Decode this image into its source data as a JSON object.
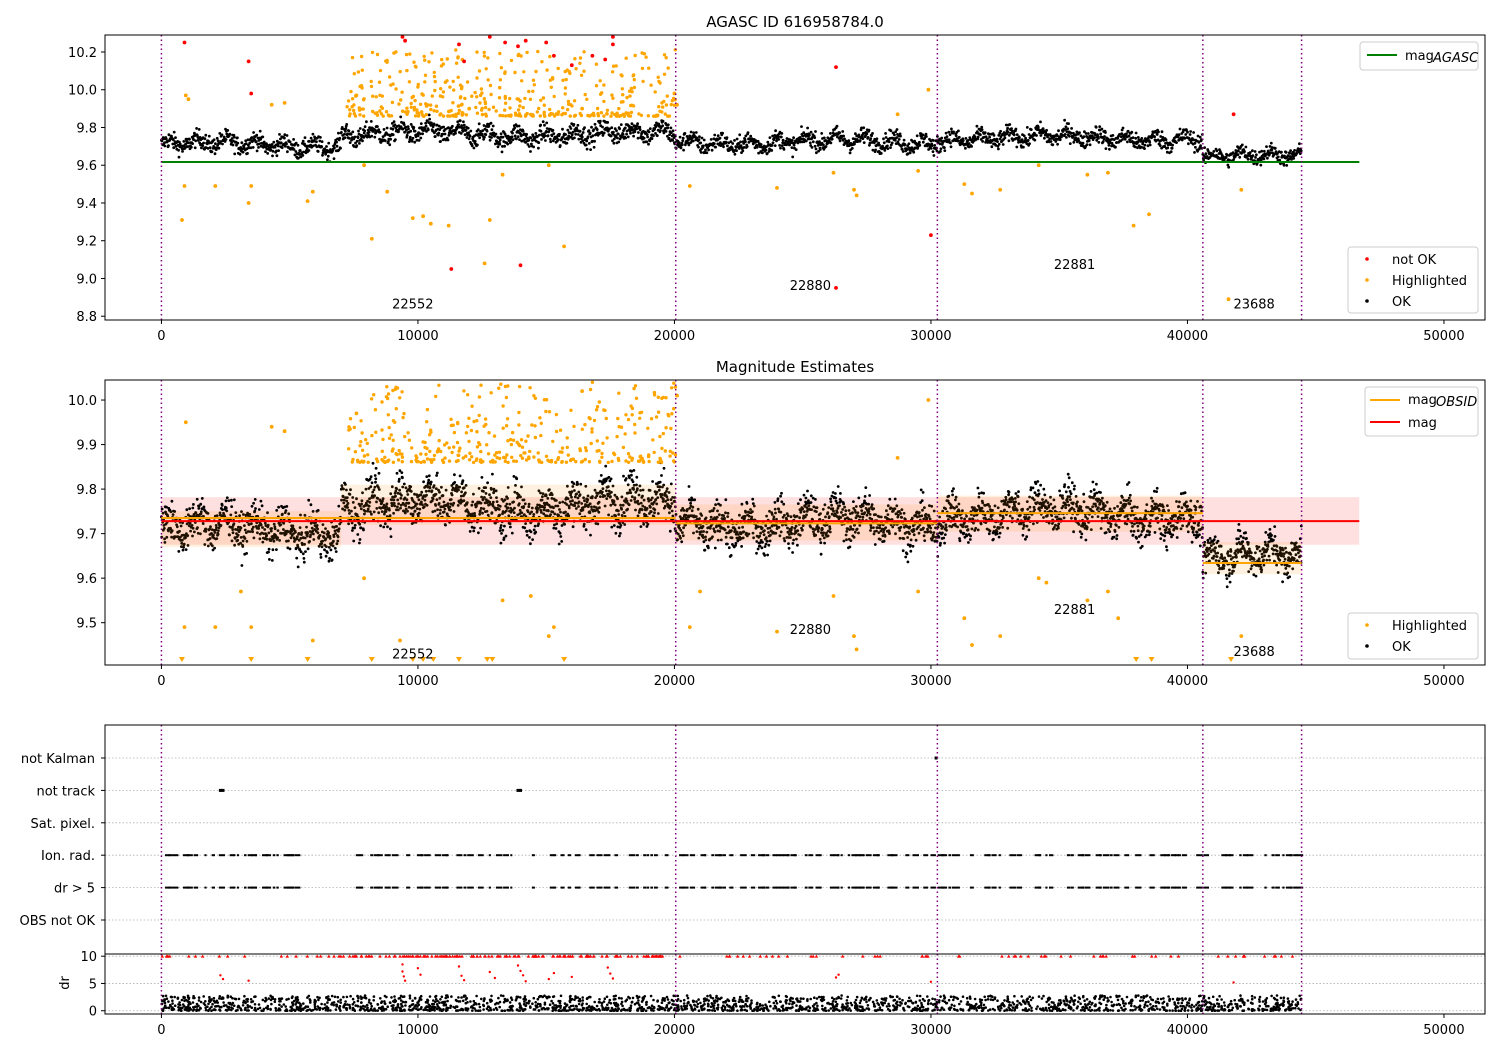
{
  "chart_data": [
    {
      "type": "scatter",
      "title": "AGASC ID 616958784.0",
      "xlim": [
        -2200,
        51600
      ],
      "ylim": [
        8.78,
        10.29
      ],
      "xticks": [
        0,
        10000,
        20000,
        30000,
        40000,
        50000
      ],
      "yticks": [
        8.8,
        9.0,
        9.2,
        9.4,
        9.6,
        9.8,
        10.0,
        10.2
      ],
      "line_legend": {
        "position": "top-right",
        "entries": [
          {
            "name": "mag",
            "sub": "AGASC",
            "color": "#008000"
          }
        ]
      },
      "scatter_legend": {
        "position": "bottom-right",
        "entries": [
          {
            "name": "not OK",
            "color": "#ff0000"
          },
          {
            "name": "Highlighted",
            "color": "#ffa500"
          },
          {
            "name": "OK",
            "color": "#000000"
          }
        ]
      },
      "mag_agasc": 9.617,
      "mag_agasc_x": [
        0,
        46700
      ],
      "obs_boundaries": [
        0,
        20050,
        30250,
        40600,
        44450
      ],
      "observations": [
        {
          "obsid": "22552",
          "x": 9800,
          "y": 8.84
        },
        {
          "obsid": "22880",
          "x": 25300,
          "y": 8.94
        },
        {
          "obsid": "22881",
          "x": 35600,
          "y": 9.05
        },
        {
          "obsid": "23688",
          "x": 42600,
          "y": 8.84
        }
      ],
      "ok_segments": [
        {
          "x0": 0,
          "x1": 7000,
          "mean": 9.71,
          "spread": 0.045
        },
        {
          "x0": 7000,
          "x1": 20050,
          "mean": 9.765,
          "spread": 0.05
        },
        {
          "x0": 20050,
          "x1": 30250,
          "mean": 9.725,
          "spread": 0.045
        },
        {
          "x0": 30250,
          "x1": 40600,
          "mean": 9.745,
          "spread": 0.045
        },
        {
          "x0": 40600,
          "x1": 44450,
          "mean": 9.645,
          "spread": 0.04
        }
      ],
      "highlighted_points": [
        [
          800,
          9.31
        ],
        [
          900,
          9.49
        ],
        [
          950,
          9.97
        ],
        [
          1050,
          9.95
        ],
        [
          2100,
          9.49
        ],
        [
          3400,
          9.4
        ],
        [
          3500,
          9.49
        ],
        [
          4300,
          9.92
        ],
        [
          4800,
          9.93
        ],
        [
          5700,
          9.41
        ],
        [
          5900,
          9.46
        ],
        [
          7600,
          9.97
        ],
        [
          7900,
          9.6
        ],
        [
          8200,
          9.21
        ],
        [
          8800,
          9.46
        ],
        [
          9800,
          9.32
        ],
        [
          10200,
          9.33
        ],
        [
          10500,
          9.29
        ],
        [
          11200,
          9.28
        ],
        [
          12000,
          9.9
        ],
        [
          12600,
          9.08
        ],
        [
          12800,
          9.31
        ],
        [
          13300,
          9.55
        ],
        [
          15100,
          9.6
        ],
        [
          15700,
          9.17
        ],
        [
          16400,
          9.9
        ],
        [
          20000,
          9.98
        ],
        [
          20100,
          9.92
        ],
        [
          20600,
          9.49
        ],
        [
          24000,
          9.48
        ],
        [
          26200,
          9.56
        ],
        [
          27000,
          9.47
        ],
        [
          27100,
          9.44
        ],
        [
          28700,
          9.87
        ],
        [
          29500,
          9.57
        ],
        [
          29900,
          10.0
        ],
        [
          31300,
          9.5
        ],
        [
          31600,
          9.45
        ],
        [
          32700,
          9.47
        ],
        [
          34200,
          9.6
        ],
        [
          36100,
          9.55
        ],
        [
          36900,
          9.56
        ],
        [
          37900,
          9.28
        ],
        [
          38500,
          9.34
        ],
        [
          41600,
          8.89
        ],
        [
          42100,
          9.47
        ]
      ],
      "highlighted_clusters": [
        {
          "x0": 7200,
          "x1": 20050,
          "ymin": 9.86,
          "ymax": 10.22,
          "count": 420
        }
      ],
      "not_ok_points": [
        [
          900,
          10.25
        ],
        [
          3400,
          10.15
        ],
        [
          3500,
          9.98
        ],
        [
          9400,
          10.28
        ],
        [
          9500,
          10.26
        ],
        [
          11300,
          9.05
        ],
        [
          11600,
          10.24
        ],
        [
          11800,
          10.15
        ],
        [
          12800,
          10.28
        ],
        [
          13400,
          10.25
        ],
        [
          13900,
          10.23
        ],
        [
          14000,
          9.07
        ],
        [
          14200,
          10.26
        ],
        [
          15000,
          10.25
        ],
        [
          15300,
          10.18
        ],
        [
          16000,
          10.13
        ],
        [
          16800,
          10.18
        ],
        [
          17300,
          10.16
        ],
        [
          17600,
          10.28
        ],
        [
          17600,
          10.24
        ],
        [
          26300,
          10.12
        ],
        [
          26300,
          8.95
        ],
        [
          30000,
          9.23
        ],
        [
          41800,
          9.87
        ]
      ]
    },
    {
      "type": "scatter",
      "title": "Magnitude Estimates",
      "xlim": [
        -2200,
        51600
      ],
      "ylim": [
        9.405,
        10.045
      ],
      "xticks": [
        0,
        10000,
        20000,
        30000,
        40000,
        50000
      ],
      "yticks": [
        9.5,
        9.6,
        9.7,
        9.8,
        9.9,
        10.0
      ],
      "line_legend": {
        "position": "top-right",
        "entries": [
          {
            "name": "mag",
            "sub": "OBSID",
            "color": "#ffa500"
          },
          {
            "name": "mag",
            "sub": "",
            "color": "#ff0000"
          }
        ]
      },
      "scatter_legend": {
        "position": "bottom-right",
        "entries": [
          {
            "name": "Highlighted",
            "color": "#ffa500"
          },
          {
            "name": "OK",
            "color": "#000000"
          }
        ]
      },
      "mag": 9.728,
      "mag_band": [
        9.675,
        9.782
      ],
      "mag_x": [
        0,
        46700
      ],
      "obs_boundaries": [
        0,
        20050,
        30250,
        40600,
        44450
      ],
      "mag_obsid": [
        {
          "x0": 0,
          "x1": 20050,
          "y": 9.735
        },
        {
          "x0": 20050,
          "x1": 30250,
          "y": 9.723
        },
        {
          "x0": 30250,
          "x1": 40600,
          "y": 9.746
        },
        {
          "x0": 40600,
          "x1": 44450,
          "y": 9.634
        }
      ],
      "observations": [
        {
          "obsid": "22552",
          "x": 9800,
          "y": 9.42
        },
        {
          "obsid": "22880",
          "x": 25300,
          "y": 9.475
        },
        {
          "obsid": "22881",
          "x": 35600,
          "y": 9.52
        },
        {
          "obsid": "23688",
          "x": 42600,
          "y": 9.425
        }
      ],
      "ok_segments": [
        {
          "x0": 0,
          "x1": 7000,
          "mean": 9.71,
          "spread": 0.045
        },
        {
          "x0": 7000,
          "x1": 20050,
          "mean": 9.765,
          "spread": 0.05
        },
        {
          "x0": 20050,
          "x1": 30250,
          "mean": 9.725,
          "spread": 0.045
        },
        {
          "x0": 30250,
          "x1": 40600,
          "mean": 9.745,
          "spread": 0.045
        },
        {
          "x0": 40600,
          "x1": 44450,
          "mean": 9.645,
          "spread": 0.04
        }
      ],
      "highlighted_points": [
        [
          900,
          9.49
        ],
        [
          950,
          9.95
        ],
        [
          2100,
          9.49
        ],
        [
          3100,
          9.57
        ],
        [
          3500,
          9.49
        ],
        [
          4300,
          9.94
        ],
        [
          4800,
          9.93
        ],
        [
          5900,
          9.46
        ],
        [
          7600,
          9.97
        ],
        [
          7900,
          9.6
        ],
        [
          9300,
          9.46
        ],
        [
          13300,
          9.55
        ],
        [
          14400,
          9.56
        ],
        [
          15100,
          9.47
        ],
        [
          15300,
          9.49
        ],
        [
          16400,
          10.02
        ],
        [
          20100,
          10.01
        ],
        [
          20600,
          9.49
        ],
        [
          21000,
          9.57
        ],
        [
          24000,
          9.48
        ],
        [
          26200,
          9.56
        ],
        [
          27000,
          9.47
        ],
        [
          27100,
          9.44
        ],
        [
          28700,
          9.87
        ],
        [
          29500,
          9.57
        ],
        [
          29900,
          10.0
        ],
        [
          31300,
          9.51
        ],
        [
          31600,
          9.45
        ],
        [
          32700,
          9.47
        ],
        [
          34200,
          9.6
        ],
        [
          34500,
          9.59
        ],
        [
          36100,
          9.55
        ],
        [
          36900,
          9.57
        ],
        [
          37300,
          9.51
        ],
        [
          42100,
          9.47
        ]
      ],
      "highlighted_clusters": [
        {
          "x0": 7200,
          "x1": 20050,
          "ymin": 9.86,
          "ymax": 10.04,
          "count": 380
        }
      ],
      "clipped_markers": [
        800,
        3500,
        5700,
        8200,
        9800,
        10200,
        10600,
        11600,
        12700,
        12900,
        15700,
        38000,
        38600,
        41700
      ]
    },
    {
      "type": "scatter",
      "title": "",
      "xlim": [
        -2200,
        51600
      ],
      "categories": [
        "not Kalman",
        "not track",
        "Sat. pixel.",
        "Ion. rad.",
        "dr > 5",
        "OBS not OK"
      ],
      "obs_boundaries": [
        0,
        20050,
        30250,
        40600,
        44450
      ],
      "flag_points": [
        {
          "category": "not track",
          "x": [
            2300,
            2400,
            13900,
            14000
          ]
        },
        {
          "category": "not Kalman",
          "x": [
            30200
          ]
        }
      ],
      "flag_windows": [
        {
          "x0": 0,
          "x1": 5400
        },
        {
          "x0": 7300,
          "x1": 44450
        }
      ]
    },
    {
      "type": "scatter",
      "title": "",
      "ylabel": "dr",
      "xlim": [
        -2200,
        51600
      ],
      "ylim": [
        -0.6,
        10.4
      ],
      "xticks": [
        0,
        10000,
        20000,
        30000,
        40000,
        50000
      ],
      "yticks": [
        0,
        5,
        10
      ],
      "obs_boundaries": [
        0,
        20050,
        30250,
        40600,
        44450
      ],
      "ok_range": [
        0,
        2.8
      ],
      "clipped_value": 10,
      "red_points": [
        [
          9400,
          8.5
        ],
        [
          9400,
          7.2
        ],
        [
          9450,
          6.3
        ],
        [
          9500,
          5.5
        ],
        [
          10000,
          7.8
        ],
        [
          10100,
          6.6
        ],
        [
          11600,
          8.1
        ],
        [
          11700,
          6.4
        ],
        [
          11800,
          5.6
        ],
        [
          12800,
          7.1
        ],
        [
          13000,
          6.0
        ],
        [
          13900,
          8.3
        ],
        [
          14000,
          7.3
        ],
        [
          14100,
          6.5
        ],
        [
          14200,
          5.4
        ],
        [
          15100,
          5.8
        ],
        [
          15300,
          6.9
        ],
        [
          16000,
          6.2
        ],
        [
          17400,
          7.9
        ],
        [
          17500,
          6.8
        ],
        [
          17600,
          5.9
        ],
        [
          2300,
          6.5
        ],
        [
          2400,
          5.8
        ],
        [
          3400,
          5.5
        ],
        [
          26300,
          6.1
        ],
        [
          26400,
          6.6
        ],
        [
          30000,
          5.3
        ],
        [
          41800,
          5.2
        ]
      ]
    }
  ]
}
